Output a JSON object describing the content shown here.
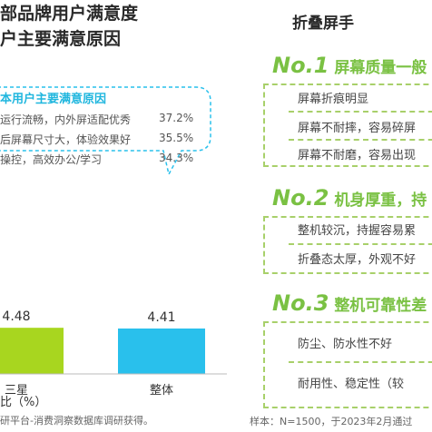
{
  "left": {
    "title_line1": "部品牌用户满意度",
    "title_line2": "户主要满意原因",
    "reasons_title": "本用户主要满意原因",
    "reasons": [
      {
        "text": "运行流畅，内外屏适配优秀",
        "pct": "37.2%"
      },
      {
        "text": "后屏幕尺寸大，体验效果好",
        "pct": "35.5%"
      },
      {
        "text": "操控，高效办公/学习",
        "pct": "34.3%"
      }
    ],
    "axis_footer": "比（%）",
    "source": "研平台-消费洞察数据库调研获得。"
  },
  "chart_data": {
    "type": "bar",
    "categories": [
      "三星",
      "整体"
    ],
    "values": [
      4.48,
      4.41
    ],
    "value_labels": [
      "4.48",
      "4.41"
    ],
    "colors": [
      "#a8d61f",
      "#29c0ec"
    ],
    "ylim": [
      0,
      5.5
    ]
  },
  "right": {
    "title": "折叠屏手",
    "groups": [
      {
        "no": "No.1",
        "label": "屏幕质量一般",
        "items": [
          "屏幕折痕明显",
          "屏幕不耐摔，容易碎屏",
          "屏幕不耐磨，容易出现"
        ]
      },
      {
        "no": "No.2",
        "label": "机身厚重，持",
        "items": [
          "整机较沉，持握容易累",
          "折叠态太厚，外观不好"
        ]
      },
      {
        "no": "No.3",
        "label": "整机可靠性差",
        "items": [
          "防尘、防水性不好",
          "耐用性、稳定性（较"
        ]
      }
    ],
    "sample_note": "样本：N=1500，于2023年2月通过"
  },
  "colors": {
    "accent_green": "#7ac143",
    "accent_blue": "#1fb6de",
    "bar_green": "#a8d61f",
    "bar_blue": "#29c0ec"
  }
}
